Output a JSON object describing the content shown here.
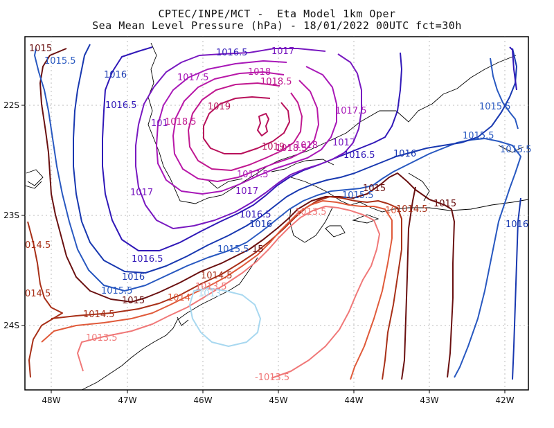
{
  "title": {
    "line1": "CPTEC/INPE/MCT -  Eta Model 1km Oper",
    "line2": "Sea Mean Level Pressure (hPa) - 18/01/2022 00UTC fct=30h"
  },
  "axes": {
    "x_ticks": [
      "48W",
      "47W",
      "46W",
      "45W",
      "44W",
      "43W",
      "42W"
    ],
    "y_ticks": [
      "22S",
      "23S",
      "24S"
    ]
  },
  "colors": {
    "c1013": "#a8d8f0",
    "c1013_5": "#f07878",
    "c1014": "#e05a3a",
    "c1014_5": "#a83018",
    "c1015": "#6a1010",
    "c1015_5": "#2858c0",
    "c1016": "#1838b0",
    "c1016_5": "#3018b8",
    "c1017": "#7818c0",
    "c1017_5": "#a818b8",
    "c1018": "#b818a8",
    "c1018_5": "#c01890",
    "c1019": "#b8105a"
  },
  "labels": [
    {
      "text": "1015",
      "color": "c1015"
    },
    {
      "text": "1015.5",
      "color": "c1015_5"
    },
    {
      "text": "1016",
      "color": "c1016"
    },
    {
      "text": "1016.5",
      "color": "c1016_5"
    },
    {
      "text": "1017",
      "color": "c1017"
    },
    {
      "text": "1017",
      "color": "c1017"
    },
    {
      "text": "1017.5",
      "color": "c1017_5"
    },
    {
      "text": "1016.5",
      "color": "c1016_5"
    },
    {
      "text": "1018",
      "color": "c1018"
    },
    {
      "text": "1018.5",
      "color": "c1018_5"
    },
    {
      "text": "1019",
      "color": "c1019"
    },
    {
      "text": "1017.5",
      "color": "c1017_5"
    },
    {
      "text": "1015.5",
      "color": "c1015_5"
    },
    {
      "text": "1015.5",
      "color": "c1015_5"
    },
    {
      "text": "1015.5",
      "color": "c1015_5"
    },
    {
      "text": "101",
      "color": "c1017"
    },
    {
      "text": "1018.5",
      "color": "c1018_5"
    },
    {
      "text": "1019",
      "color": "c1019"
    },
    {
      "text": "1018.5",
      "color": "c1018_5"
    },
    {
      "text": "1018",
      "color": "c1018"
    },
    {
      "text": "1017",
      "color": "c1017"
    },
    {
      "text": "1016.5",
      "color": "c1016_5"
    },
    {
      "text": "1016",
      "color": "c1016"
    },
    {
      "text": "1017.5",
      "color": "c1017_5"
    },
    {
      "text": "1017",
      "color": "c1017"
    },
    {
      "text": "1017",
      "color": "c1017"
    },
    {
      "text": "1015",
      "color": "c1015"
    },
    {
      "text": "1015.5",
      "color": "c1015_5"
    },
    {
      "text": "1013.5",
      "color": "c1013_5"
    },
    {
      "text": "10",
      "color": "c1014"
    },
    {
      "text": "1014.5",
      "color": "c1014_5"
    },
    {
      "text": "1015",
      "color": "c1015"
    },
    {
      "text": "1016.5",
      "color": "c1016_5"
    },
    {
      "text": "1016",
      "color": "c1016"
    },
    {
      "text": "1016",
      "color": "c1016"
    },
    {
      "text": "014.5",
      "color": "c1014_5"
    },
    {
      "text": "1016.5",
      "color": "c1016_5"
    },
    {
      "text": "1015.5",
      "color": "c1015_5"
    },
    {
      "text": "15",
      "color": "c1015"
    },
    {
      "text": "1016",
      "color": "c1016"
    },
    {
      "text": "1014.5",
      "color": "c1014_5"
    },
    {
      "text": "014.5",
      "color": "c1014_5"
    },
    {
      "text": "1013.5",
      "color": "c1013_5"
    },
    {
      "text": "1015.5",
      "color": "c1015_5"
    },
    {
      "text": "1014",
      "color": "c1014"
    },
    {
      "text": "1013",
      "color": "c1013"
    },
    {
      "text": "1015",
      "color": "c1015"
    },
    {
      "text": "1014.5",
      "color": "c1014_5"
    },
    {
      "text": "1013.5",
      "color": "c1013_5"
    },
    {
      "text": "-1013.5",
      "color": "c1013_5"
    }
  ]
}
